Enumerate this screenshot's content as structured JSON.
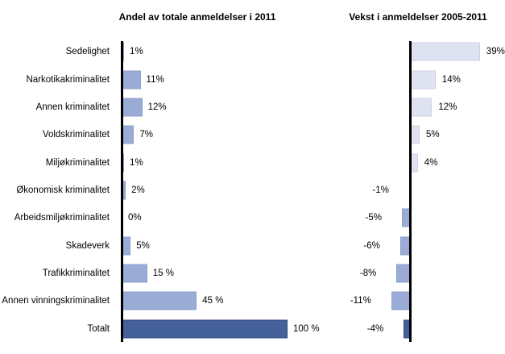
{
  "colors": {
    "bar_blue": "#9AACD5",
    "bar_blue_border": "#8BA0CB",
    "total_dark_blue": "#44619B",
    "total_dark_blue_border": "#2C4979",
    "growth_positive_light": "#DFE2F0",
    "growth_positive_light_border": "#CCD3E8",
    "axis_black": "#000000",
    "background": "#FFFFFF"
  },
  "chart_data": [
    {
      "type": "bar",
      "orientation": "horizontal",
      "title": "Andel av totale anmeldelser i 2011",
      "categories": [
        "Sedelighet",
        "Narkotikakriminalitet",
        "Annen kriminalitet",
        "Voldskriminalitet",
        "Miljøkriminalitet",
        "Økonomisk kriminalitet",
        "Arbeidsmiljøkriminalitet",
        "Skadeverk",
        "Trafikkriminalitet",
        "Annen vinningskriminalitet",
        "Totalt"
      ],
      "values": [
        1,
        11,
        12,
        7,
        1,
        2,
        0,
        5,
        15,
        45,
        100
      ],
      "value_labels": [
        "1%",
        "11%",
        "12%",
        "7%",
        "1%",
        "2%",
        "0%",
        "5%",
        "15 %",
        "45 %",
        "100 %"
      ],
      "xlim": [
        0,
        100
      ],
      "grid": false,
      "data_labels": "outside-end",
      "total_row_index": 10
    },
    {
      "type": "bar",
      "orientation": "horizontal",
      "title": "Vekst i anmeldelser 2005-2011",
      "categories": [
        "Sedelighet",
        "Narkotikakriminalitet",
        "Annen kriminalitet",
        "Voldskriminalitet",
        "Miljøkriminalitet",
        "Økonomisk kriminalitet",
        "Arbeidsmiljøkriminalitet",
        "Skadeverk",
        "Trafikkriminalitet",
        "Annen vinningskriminalitet",
        "Totalt"
      ],
      "values": [
        39,
        14,
        12,
        5,
        4,
        -1,
        -5,
        -6,
        -8,
        -11,
        -4
      ],
      "value_labels": [
        "39%",
        "14%",
        "12%",
        "5%",
        "4%",
        "-1%",
        "-5%",
        "-6%",
        "-8%",
        "-11%",
        "-4%"
      ],
      "xlim": [
        -14,
        42
      ],
      "grid": false,
      "data_labels": "outside-end",
      "total_row_index": 10
    }
  ]
}
